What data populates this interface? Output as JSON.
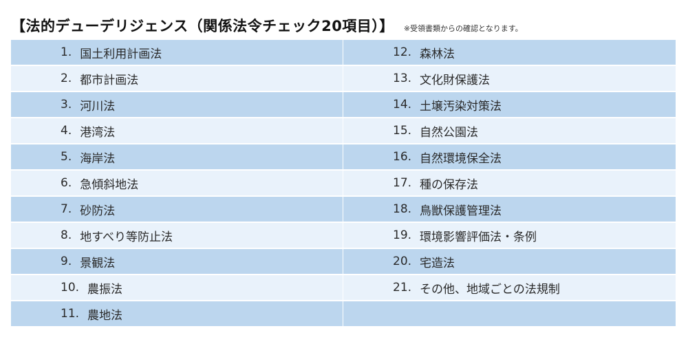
{
  "header": {
    "title": "【法的デューデリジェンス（関係法令チェック20項目）】",
    "note": "※受領書類からの確認となります。"
  },
  "left_items": [
    {
      "num": "1.",
      "label": "国土利用計画法"
    },
    {
      "num": "2.",
      "label": "都市計画法"
    },
    {
      "num": "3.",
      "label": "河川法"
    },
    {
      "num": "4.",
      "label": "港湾法"
    },
    {
      "num": "5.",
      "label": "海岸法"
    },
    {
      "num": "6.",
      "label": "急傾斜地法"
    },
    {
      "num": "7.",
      "label": "砂防法"
    },
    {
      "num": "8.",
      "label": "地すべり等防止法"
    },
    {
      "num": "9.",
      "label": "景観法"
    },
    {
      "num": "10.",
      "label": "農振法"
    },
    {
      "num": "11.",
      "label": "農地法"
    }
  ],
  "right_items": [
    {
      "num": "12.",
      "label": "森林法"
    },
    {
      "num": "13.",
      "label": "文化財保護法"
    },
    {
      "num": "14.",
      "label": "土壌汚染対策法"
    },
    {
      "num": "15.",
      "label": "自然公園法"
    },
    {
      "num": "16.",
      "label": "自然環境保全法"
    },
    {
      "num": "17.",
      "label": "種の保存法"
    },
    {
      "num": "18.",
      "label": "鳥獣保護管理法"
    },
    {
      "num": "19.",
      "label": "環境影響評価法・条例"
    },
    {
      "num": "20.",
      "label": "宅造法"
    },
    {
      "num": "21.",
      "label": "その他、地域ごとの法規制"
    },
    {
      "num": "",
      "label": ""
    }
  ]
}
